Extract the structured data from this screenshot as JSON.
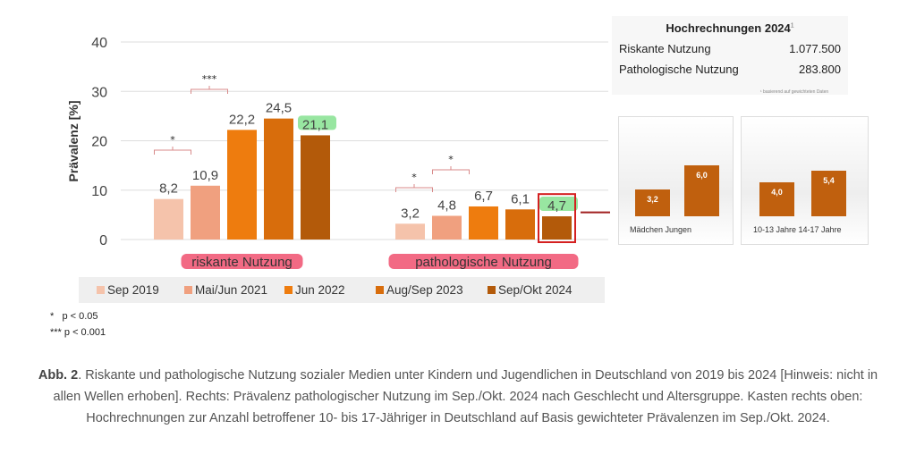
{
  "chart_data": {
    "type": "bar",
    "ylabel": "Prävalenz [%]",
    "ylim": [
      0,
      40
    ],
    "yticks": [
      "0",
      "10",
      "20",
      "30",
      "40"
    ],
    "grid": true,
    "categories": [
      "riskante Nutzung",
      "pathologische Nutzung"
    ],
    "series": [
      {
        "name": "Sep 2019",
        "color": "#f5c3ab",
        "values": [
          8.2,
          3.2
        ],
        "labels": [
          "8,2",
          "3,2"
        ]
      },
      {
        "name": "Mai/Jun 2021",
        "color": "#f0a07f",
        "values": [
          10.9,
          4.8
        ],
        "labels": [
          "10,9",
          "4,8"
        ]
      },
      {
        "name": "Jun 2022",
        "color": "#ee7c0e",
        "values": [
          22.2,
          6.7
        ],
        "labels": [
          "22,2",
          "6,7"
        ]
      },
      {
        "name": "Aug/Sep 2023",
        "color": "#d86d0c",
        "values": [
          24.5,
          6.1
        ],
        "labels": [
          "24,5",
          "6,1"
        ]
      },
      {
        "name": "Sep/Okt 2024",
        "color": "#b35a0a",
        "values": [
          21.1,
          4.7
        ],
        "labels": [
          "21,1",
          "4,7"
        ]
      }
    ],
    "significance": [
      {
        "group": "riskante Nutzung",
        "between": [
          "Sep 2019",
          "Mai/Jun 2021"
        ],
        "mark": "*"
      },
      {
        "group": "riskante Nutzung",
        "between": [
          "Mai/Jun 2021",
          "Jun 2022"
        ],
        "mark": "***"
      },
      {
        "group": "pathologische Nutzung",
        "between": [
          "Sep 2019",
          "Mai/Jun 2021"
        ],
        "mark": "*"
      },
      {
        "group": "pathologische Nutzung",
        "between": [
          "Mai/Jun 2021",
          "Jun 2022"
        ],
        "mark": "*"
      }
    ],
    "legend": "bottom",
    "sub_charts": [
      {
        "type": "bar",
        "categories": [
          "Mädchen",
          "Jungen"
        ],
        "values": [
          3.2,
          6.0
        ],
        "labels": [
          "3,2",
          "6,0"
        ]
      },
      {
        "type": "bar",
        "categories": [
          "10-13 Jahre",
          "14-17 Jahre"
        ],
        "values": [
          4.0,
          5.4
        ],
        "labels": [
          "4,0",
          "5,4"
        ]
      }
    ]
  },
  "significance_legend": [
    {
      "mark": "*",
      "text": "p < 0.05"
    },
    {
      "mark": "***",
      "text": "p < 0.001"
    }
  ],
  "projection": {
    "title": "Hochrechnungen 2024",
    "title_sup": "1",
    "rows": [
      {
        "label": "Riskante Nutzung",
        "value": "1.077.500"
      },
      {
        "label": "Pathologische Nutzung",
        "value": "283.800"
      }
    ],
    "footnote": "¹ basierend auf gewichteten Daten"
  },
  "caption": {
    "label": "Abb. 2",
    "text": ". Riskante und pathologische Nutzung sozialer Medien unter Kindern und Jugendlichen in Deutschland von 2019 bis 2024 [Hinweis: nicht in allen Wellen erhoben]. Rechts: Prävalenz pathologischer Nutzung im Sep./Okt. 2024 nach Geschlecht und Altersgruppe. Kasten rechts oben: Hochrechnungen zur Anzahl betroffener 10- bis 17-Jähriger in Deutschland auf Basis gewichteter Prävalenzen im Sep./Okt. 2024."
  },
  "colors": {
    "highlight_green": "#7ee08a",
    "highlight_red": "#f0506e",
    "box_red": "#d42020"
  }
}
